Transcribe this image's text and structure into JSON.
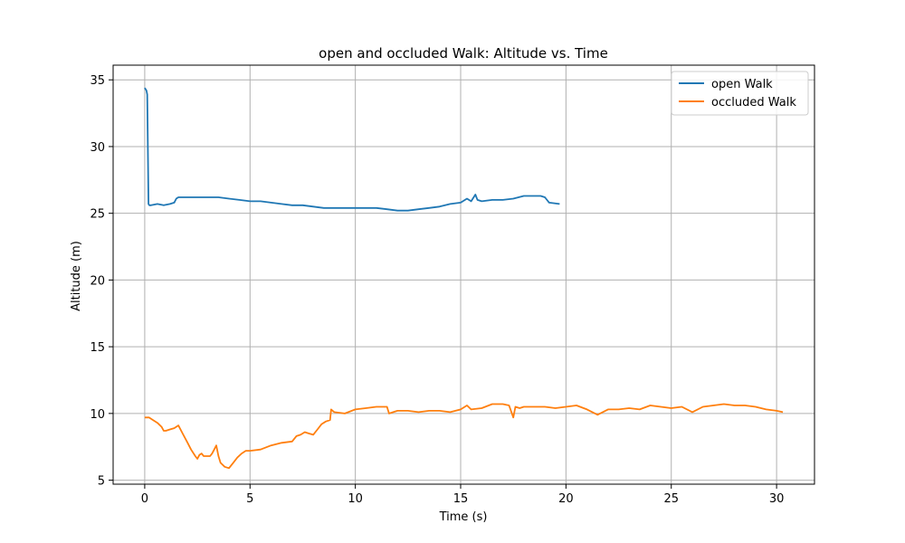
{
  "chart_data": {
    "type": "line",
    "title": "open and occluded Walk: Altitude vs. Time",
    "xlabel": "Time (s)",
    "ylabel": "Altitude (m)",
    "xlim": [
      -1.5,
      31.8
    ],
    "ylim": [
      4.7,
      36.1
    ],
    "xticks": [
      0,
      5,
      10,
      15,
      20,
      25,
      30
    ],
    "yticks": [
      5,
      10,
      15,
      20,
      25,
      30,
      35
    ],
    "grid": true,
    "legend": "top-right",
    "series": [
      {
        "name": "open Walk",
        "color": "#1f77b4",
        "x": [
          0.0,
          0.08,
          0.12,
          0.18,
          0.22,
          0.3,
          0.6,
          0.9,
          1.2,
          1.4,
          1.5,
          1.6,
          2.0,
          2.5,
          3.0,
          3.5,
          4.0,
          4.5,
          5.0,
          5.5,
          6.0,
          6.5,
          7.0,
          7.5,
          8.0,
          8.5,
          9.0,
          9.5,
          10.0,
          10.5,
          11.0,
          11.5,
          12.0,
          12.5,
          13.0,
          13.5,
          14.0,
          14.5,
          15.0,
          15.3,
          15.5,
          15.7,
          15.8,
          16.0,
          16.5,
          17.0,
          17.5,
          18.0,
          18.5,
          18.8,
          19.0,
          19.2,
          19.7
        ],
        "y": [
          34.4,
          34.2,
          33.9,
          25.7,
          25.6,
          25.6,
          25.7,
          25.6,
          25.7,
          25.8,
          26.1,
          26.2,
          26.2,
          26.2,
          26.2,
          26.2,
          26.1,
          26.0,
          25.9,
          25.9,
          25.8,
          25.7,
          25.6,
          25.6,
          25.5,
          25.4,
          25.4,
          25.4,
          25.4,
          25.4,
          25.4,
          25.3,
          25.2,
          25.2,
          25.3,
          25.4,
          25.5,
          25.7,
          25.8,
          26.1,
          25.9,
          26.4,
          26.0,
          25.9,
          26.0,
          26.0,
          26.1,
          26.3,
          26.3,
          26.3,
          26.2,
          25.8,
          25.7
        ]
      },
      {
        "name": "occluded Walk",
        "color": "#ff7f0e",
        "x": [
          0.0,
          0.2,
          0.4,
          0.6,
          0.8,
          0.9,
          1.0,
          1.2,
          1.4,
          1.6,
          1.8,
          2.0,
          2.2,
          2.4,
          2.5,
          2.6,
          2.7,
          2.8,
          3.0,
          3.1,
          3.2,
          3.3,
          3.4,
          3.5,
          3.6,
          3.8,
          4.0,
          4.2,
          4.4,
          4.6,
          4.8,
          5.0,
          5.5,
          6.0,
          6.5,
          7.0,
          7.2,
          7.4,
          7.6,
          7.8,
          8.0,
          8.2,
          8.4,
          8.6,
          8.8,
          8.85,
          9.0,
          9.5,
          10.0,
          10.5,
          11.0,
          11.5,
          11.6,
          11.8,
          12.0,
          12.5,
          13.0,
          13.5,
          14.0,
          14.5,
          15.0,
          15.3,
          15.5,
          16.0,
          16.5,
          17.0,
          17.3,
          17.5,
          17.6,
          17.8,
          18.0,
          18.5,
          19.0,
          19.5,
          20.0,
          20.5,
          21.0,
          21.5,
          22.0,
          22.5,
          23.0,
          23.5,
          24.0,
          24.5,
          25.0,
          25.5,
          26.0,
          26.5,
          27.0,
          27.5,
          28.0,
          28.5,
          29.0,
          29.5,
          30.0,
          30.3
        ],
        "y": [
          9.7,
          9.7,
          9.5,
          9.3,
          9.0,
          8.7,
          8.7,
          8.8,
          8.9,
          9.1,
          8.5,
          7.9,
          7.3,
          6.8,
          6.6,
          6.9,
          7.0,
          6.8,
          6.8,
          6.8,
          7.0,
          7.3,
          7.6,
          6.8,
          6.3,
          6.0,
          5.9,
          6.3,
          6.7,
          7.0,
          7.2,
          7.2,
          7.3,
          7.6,
          7.8,
          7.9,
          8.3,
          8.4,
          8.6,
          8.5,
          8.4,
          8.8,
          9.2,
          9.4,
          9.5,
          10.3,
          10.1,
          10.0,
          10.3,
          10.4,
          10.5,
          10.5,
          10.0,
          10.1,
          10.2,
          10.2,
          10.1,
          10.2,
          10.2,
          10.1,
          10.3,
          10.6,
          10.3,
          10.4,
          10.7,
          10.7,
          10.6,
          9.7,
          10.5,
          10.4,
          10.5,
          10.5,
          10.5,
          10.4,
          10.5,
          10.6,
          10.3,
          9.9,
          10.3,
          10.3,
          10.4,
          10.3,
          10.6,
          10.5,
          10.4,
          10.5,
          10.1,
          10.5,
          10.6,
          10.7,
          10.6,
          10.6,
          10.5,
          10.3,
          10.2,
          10.1
        ]
      }
    ]
  }
}
